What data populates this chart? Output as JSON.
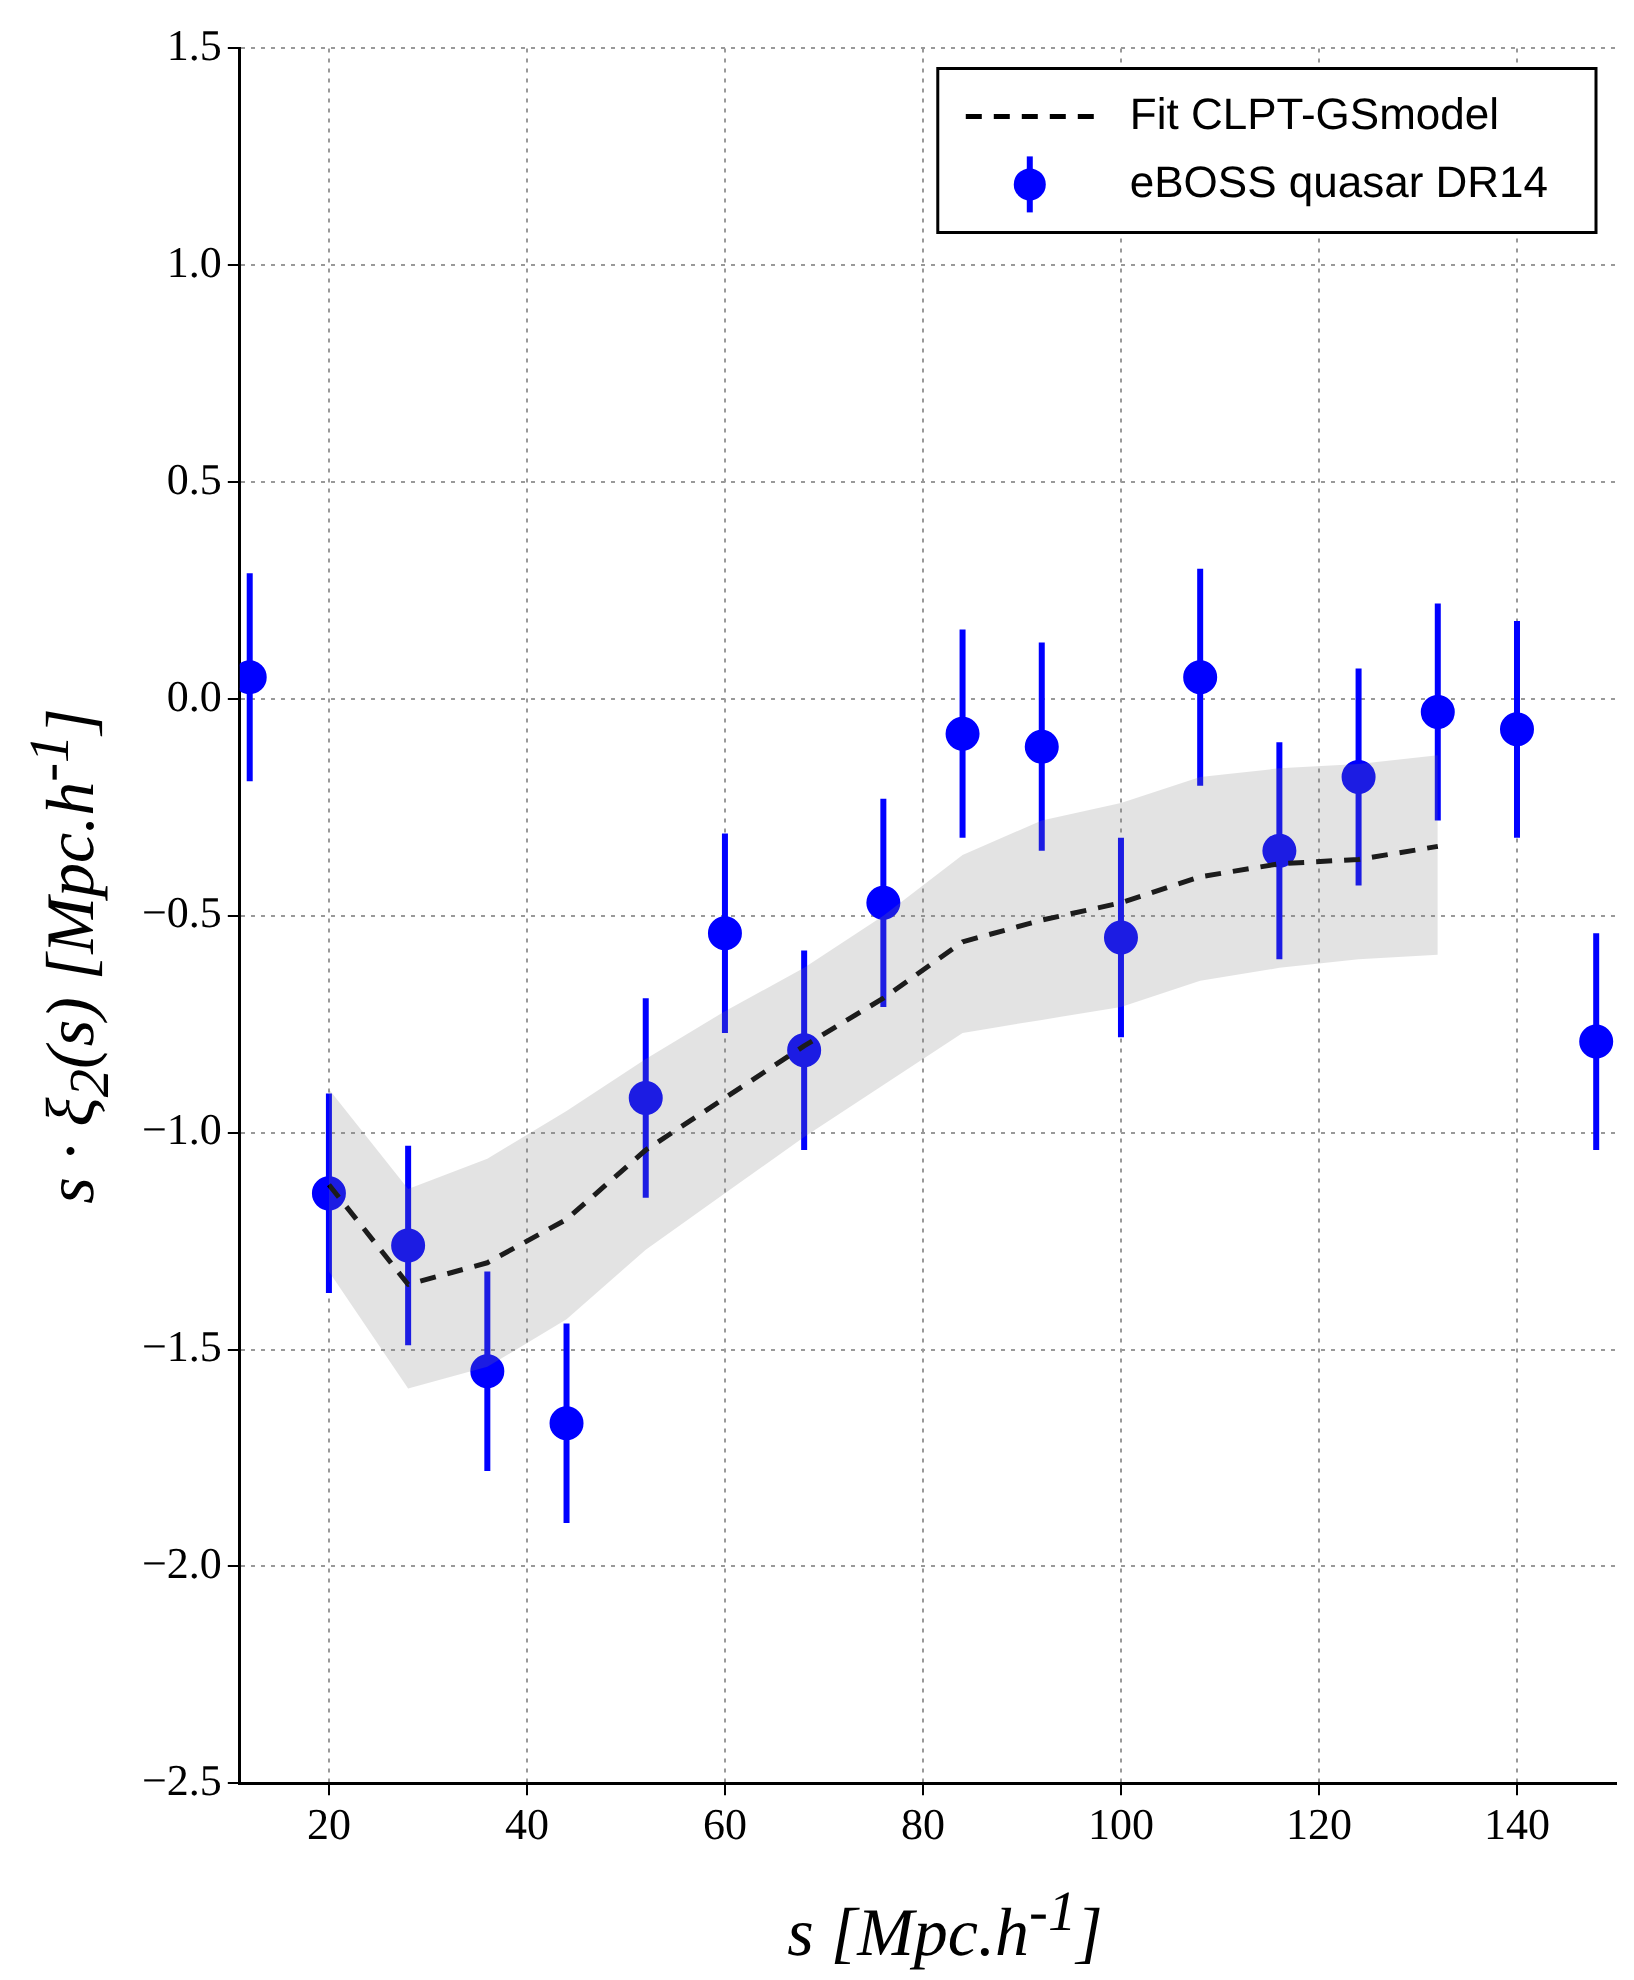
{
  "chart_data": {
    "type": "scatter",
    "xlabel": "s [Mpc.h$^{-1}$]",
    "ylabel": "s · ξ$_{2}$(s) [Mpc.h$^{-1}$]",
    "xlim": [
      11,
      150
    ],
    "xticks": [
      20,
      40,
      60,
      80,
      100,
      120,
      140
    ],
    "ylim": [
      -2.5,
      1.5
    ],
    "yticks": [
      {
        "value": -2.5,
        "label": "−2.5"
      },
      {
        "value": -2,
        "label": "−2.0"
      },
      {
        "value": -1.5,
        "label": "−1.5"
      },
      {
        "value": -1,
        "label": "−1.0"
      },
      {
        "value": -0.5,
        "label": "−0.5"
      },
      {
        "value": 0,
        "label": "0.0"
      },
      {
        "value": 0.5,
        "label": "0.5"
      },
      {
        "value": 1,
        "label": "1.0"
      },
      {
        "value": 1.5,
        "label": "1.5"
      }
    ],
    "grid": true,
    "legend": "top right",
    "series": [
      {
        "name": "Fit CLPT-GSmodel",
        "type": "line",
        "line_style": "dashed",
        "marker": "none",
        "color": "#000000",
        "x": [
          20,
          28,
          36,
          44,
          52,
          60,
          68,
          76,
          84,
          92,
          100,
          108,
          116,
          124,
          132
        ],
        "values": [
          -1.12,
          -1.35,
          -1.3,
          -1.2,
          -1.04,
          -0.92,
          -0.8,
          -0.69,
          -0.56,
          -0.51,
          -0.47,
          -0.41,
          -0.38,
          -0.37,
          -0.34
        ],
        "lower": [
          -1.32,
          -1.59,
          -1.54,
          -1.43,
          -1.27,
          -1.14,
          -1.01,
          -0.89,
          -0.77,
          -0.74,
          -0.71,
          -0.65,
          -0.62,
          -0.6,
          -0.59
        ],
        "upper": [
          -0.9,
          -1.13,
          -1.06,
          -0.95,
          -0.83,
          -0.72,
          -0.62,
          -0.5,
          -0.36,
          -0.28,
          -0.24,
          -0.18,
          -0.16,
          -0.15,
          -0.13
        ]
      },
      {
        "name": "eBOSS quasar DR14",
        "marker": "circle",
        "color": "#0000ff",
        "x": [
          12,
          20,
          28,
          36,
          44,
          52,
          60,
          68,
          76,
          84,
          92,
          100,
          108,
          116,
          124,
          132,
          140,
          148
        ],
        "values": [
          0.05,
          -1.14,
          -1.26,
          -1.55,
          -1.67,
          -0.92,
          -0.54,
          -0.81,
          -0.47,
          -0.08,
          -0.11,
          -0.55,
          0.05,
          -0.35,
          -0.18,
          -0.03,
          -0.07,
          -0.79
        ],
        "errors": [
          0.24,
          0.23,
          0.23,
          0.23,
          0.23,
          0.23,
          0.23,
          0.23,
          0.24,
          0.24,
          0.24,
          0.23,
          0.25,
          0.25,
          0.25,
          0.25,
          0.25,
          0.25
        ]
      }
    ]
  }
}
